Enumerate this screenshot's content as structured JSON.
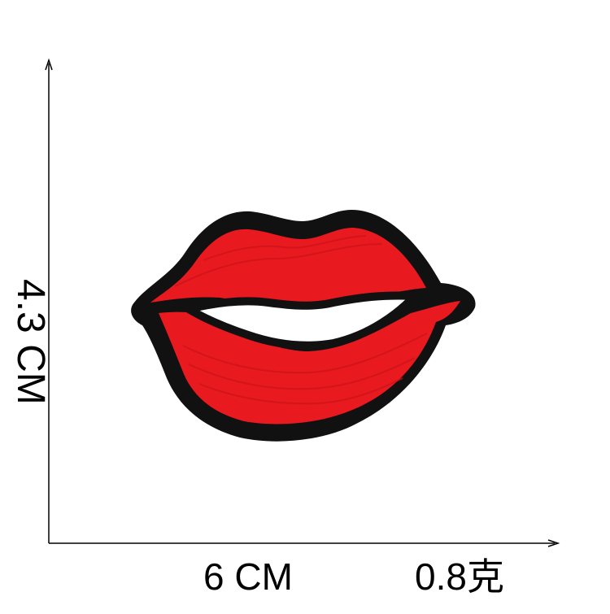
{
  "product": {
    "name_icon": "lips-patch",
    "colors": {
      "lips": "#e8191f",
      "border": "#111111",
      "background": "#ffffff"
    }
  },
  "dimensions": {
    "height_label": "4.3 CM",
    "width_label": "6 CM",
    "weight_label": "0.8克"
  }
}
